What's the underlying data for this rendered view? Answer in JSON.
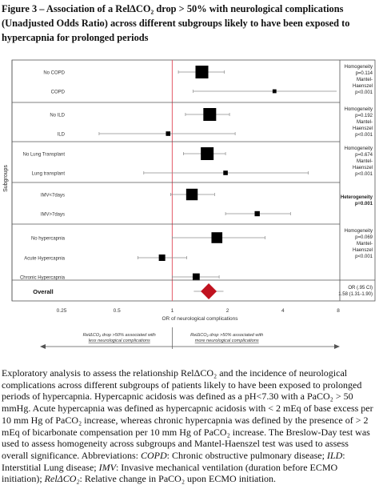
{
  "title": {
    "line1": "Figure 3 – Association of a RelΔCO₂ drop > 50% with neurological complications",
    "line2": "(Unadjusted Odds Ratio) across different subgroups likely to have been exposed to",
    "line3": "hypercapnia for prolonged periods"
  },
  "chart_data": {
    "type": "forest",
    "xscale": "log",
    "xlim": [
      0.25,
      8
    ],
    "xticks": [
      "0.25",
      "0.5",
      "1",
      "2",
      "4",
      "8"
    ],
    "xlabel": "OR of neurological complications",
    "yaxis_label": "Subgroups",
    "reference_line": 1,
    "groups": [
      {
        "rows": [
          {
            "label": "No COPD",
            "or": 1.45,
            "lo": 1.08,
            "hi": 1.92,
            "size": 1.0
          },
          {
            "label": "COPD",
            "or": 3.6,
            "lo": 1.3,
            "hi": 8.0,
            "size": 0.3
          }
        ],
        "stats": [
          "Homogeneity",
          "p=0.114",
          "Mantel-",
          "Haenszel",
          "p<0.001"
        ],
        "bold": false
      },
      {
        "rows": [
          {
            "label": "No ILD",
            "or": 1.6,
            "lo": 1.18,
            "hi": 2.05,
            "size": 1.0
          },
          {
            "label": "ILD",
            "or": 0.95,
            "lo": 0.4,
            "hi": 2.2,
            "size": 0.35
          }
        ],
        "stats": [
          "Homogeneity",
          "p=0.192",
          "Mantel-",
          "Haenszel",
          "p<0.001"
        ],
        "bold": false
      },
      {
        "rows": [
          {
            "label": "No Lung Transplant",
            "or": 1.55,
            "lo": 1.15,
            "hi": 1.95,
            "size": 1.0
          },
          {
            "label": "Lung transplant",
            "or": 1.95,
            "lo": 0.7,
            "hi": 5.5,
            "size": 0.35
          }
        ],
        "stats": [
          "Homogeneity",
          "p=0.674",
          "Mantel-",
          "Haenszel",
          "p<0.001"
        ],
        "bold": false
      },
      {
        "rows": [
          {
            "label": "IMV<7days",
            "or": 1.28,
            "lo": 0.98,
            "hi": 1.7,
            "size": 0.9
          },
          {
            "label": "IMV>7days",
            "or": 2.9,
            "lo": 1.95,
            "hi": 4.4,
            "size": 0.4
          }
        ],
        "stats": [
          "Heterogeneity",
          "p=0.001"
        ],
        "bold": true
      },
      {
        "rows": [
          {
            "label": "No hypercapnia",
            "or": 1.75,
            "lo": 1.0,
            "hi": 3.2,
            "size": 0.85
          },
          {
            "label": "Acute Hypercapnia",
            "or": 0.88,
            "lo": 0.65,
            "hi": 1.2,
            "size": 0.5
          },
          {
            "label": "Chronic Hypercapnia",
            "or": 1.35,
            "lo": 1.0,
            "hi": 1.8,
            "size": 0.55
          }
        ],
        "stats": [
          "Homogeneity",
          "p=0.069",
          "Mantel-",
          "Haenszel",
          "p<0.001"
        ],
        "bold": false
      }
    ],
    "overall": {
      "label": "Overall",
      "or": 1.58,
      "lo": 1.31,
      "hi": 1.9,
      "stats": [
        "OR (.95 CI)",
        "1.58 (1.31-1.90)"
      ]
    },
    "annotation_left": [
      "RelΔCO₂ drop >50% associated with",
      "less neurological complications"
    ],
    "annotation_right": [
      "RelΔCO₂ drop >50% associated with",
      "more neurological complications"
    ],
    "colors": {
      "square": "#000000",
      "diamond": "#c0121f",
      "refline": "#e35b6a",
      "ci": "#8c8c8c"
    }
  },
  "caption": {
    "p1": "Exploratory analysis to assess the relationship RelΔCO₂ and the incidence of neurological complications across different subgroups of patients likely to have been exposed to prolonged periods of hypercapnia. Hypercapnic acidosis was defined as a pH<7.30 with a PaCO₂ > 50 mmHg. Acute hypercapnia was defined as hypercapnic acidosis with < 2 mEq of base excess per 10 mm Hg of PaCO₂ increase, whereas chronic hypercapnia was defined by the presence of > 2 mEq of bicarbonate compensation per 10 mm Hg of PaCO₂ increase. The Breslow-Day test was used to assess homogeneity across subgroups and Mantel-Haenszel test was used to assess overall significance. Abbreviations:",
    "abbr1_term": "COPD",
    "abbr1_def": ": Chronic obstructive pulmonary disease;",
    "abbr2_term": "ILD",
    "abbr2_def": ": Interstitial Lung disease;",
    "abbr3_term": "IMV",
    "abbr3_def": ": Invasive mechanical ventilation (duration before ECMO initiation);",
    "abbr4_term": "RelΔCO₂",
    "abbr4_def": ": Relative change in PaCO₂ upon ECMO initiation."
  }
}
